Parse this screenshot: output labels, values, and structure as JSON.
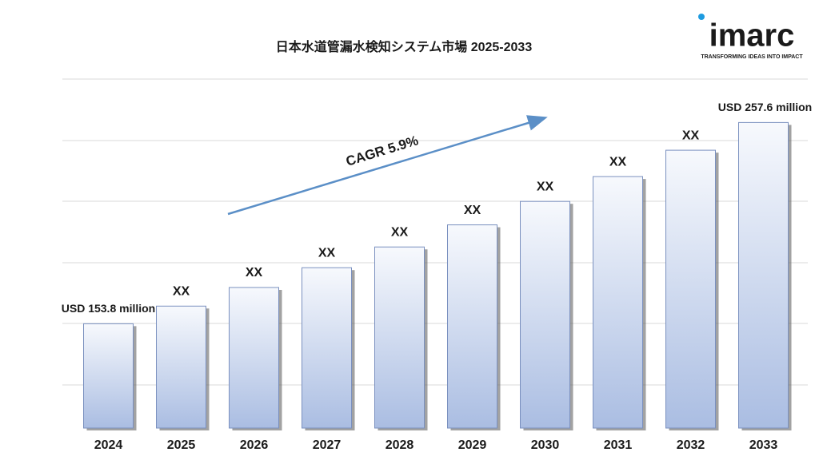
{
  "chart_data": {
    "type": "bar",
    "title": "日本水道管漏水検知システム市場 2025-2033",
    "annotation": "CAGR 5.9%",
    "categories": [
      "2024",
      "2025",
      "2026",
      "2027",
      "2028",
      "2029",
      "2030",
      "2031",
      "2032",
      "2033"
    ],
    "values": [
      153.8,
      162.9,
      172.5,
      182.7,
      193.4,
      204.8,
      216.9,
      229.7,
      243.3,
      257.6
    ],
    "value_labels": [
      "USD 153.8 million",
      "XX",
      "XX",
      "XX",
      "XX",
      "XX",
      "XX",
      "XX",
      "XX",
      "USD 257.6 million"
    ],
    "color": "#aabde2",
    "ylim": [
      100,
      280
    ]
  },
  "logo": {
    "name": "imarc",
    "tagline": "TRANSFORMING IDEAS INTO IMPACT"
  }
}
